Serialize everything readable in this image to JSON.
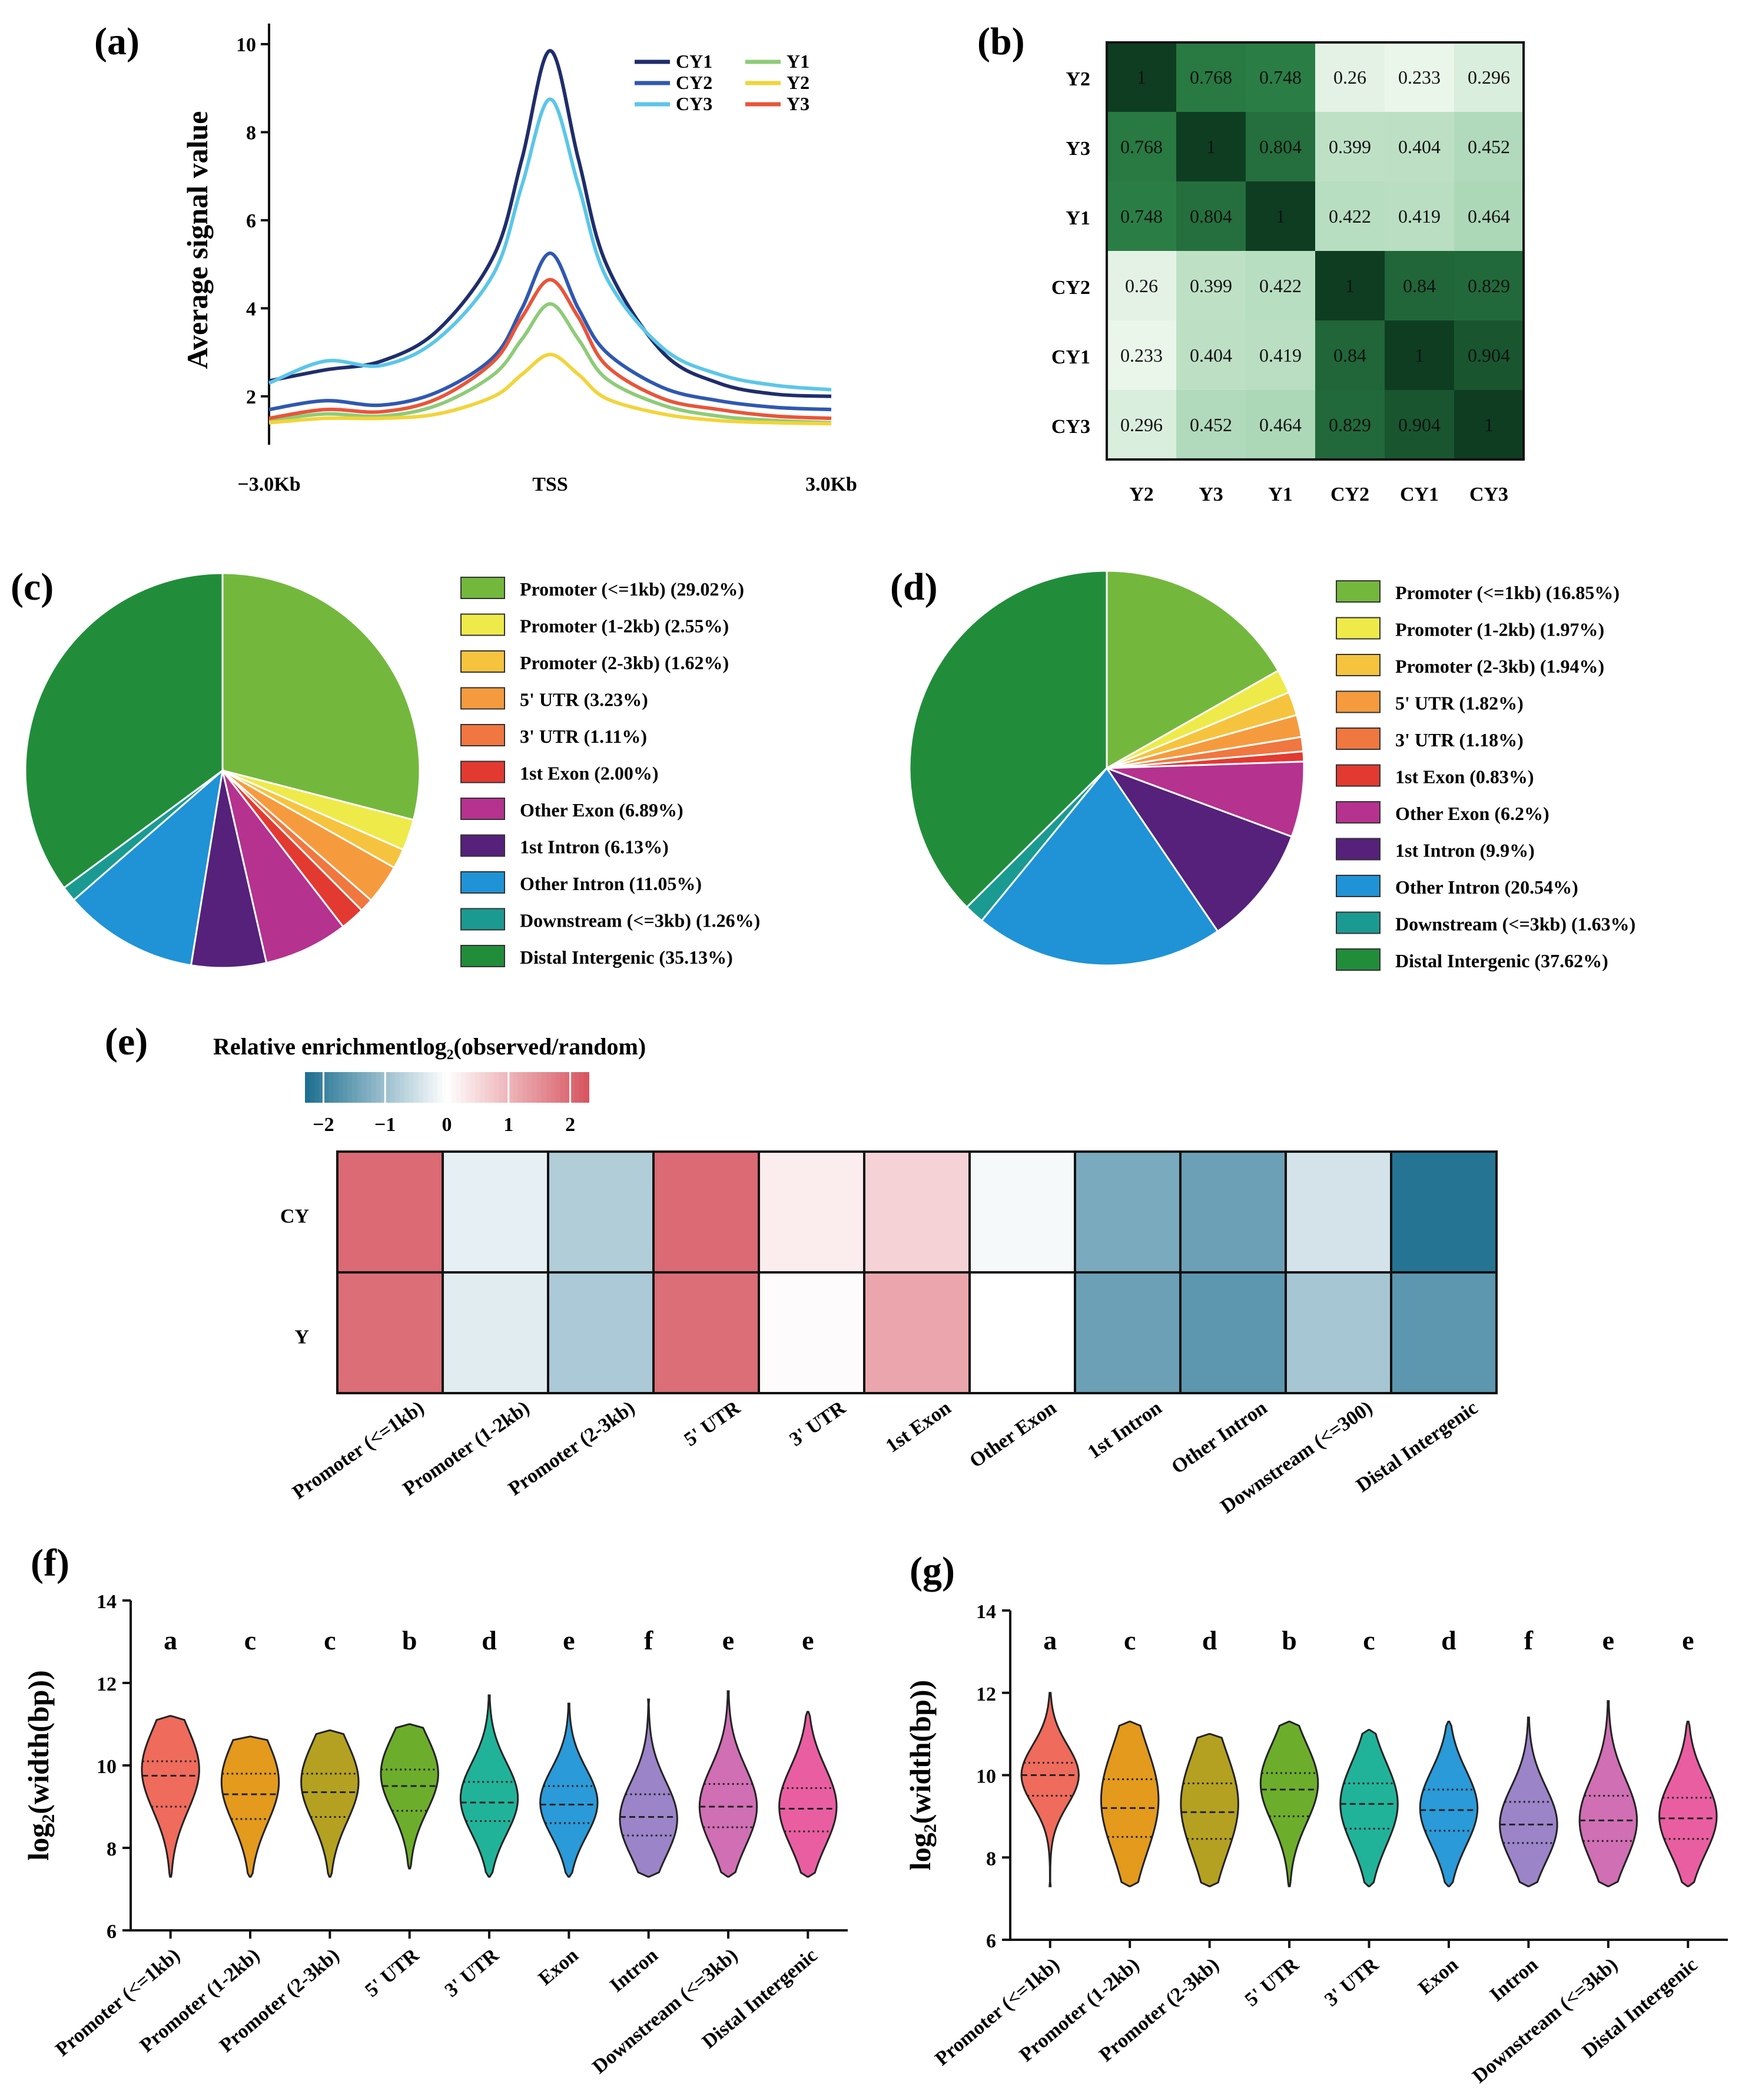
{
  "panels": [
    {
      "label": "(a)",
      "chart_data": {
        "type": "line",
        "title": "",
        "ylabel": "Average signal value",
        "xlabel": "",
        "x_tick_labels": [
          "−3.0Kb",
          "TSS",
          "3.0Kb"
        ],
        "x_range_kb": [
          -3.0,
          3.0
        ],
        "y_ticks": [
          2,
          4,
          6,
          8,
          10
        ],
        "ylim": [
          0.9,
          10.2
        ],
        "legend_position": "top-right",
        "series": [
          {
            "name": "CY1",
            "color": "#1f2d6b",
            "x": [
              -3.0,
              -2.4,
              -1.8,
              -1.2,
              -0.6,
              -0.3,
              0.0,
              0.3,
              0.6,
              1.2,
              1.8,
              2.4,
              3.0
            ],
            "values": [
              2.35,
              2.6,
              2.8,
              3.5,
              5.2,
              7.4,
              9.85,
              7.4,
              5.0,
              3.0,
              2.3,
              2.05,
              2.0
            ]
          },
          {
            "name": "CY2",
            "color": "#2f58b0",
            "x": [
              -3.0,
              -2.4,
              -1.8,
              -1.2,
              -0.6,
              -0.3,
              0.0,
              0.3,
              0.6,
              1.2,
              1.8,
              2.4,
              3.0
            ],
            "values": [
              1.7,
              1.9,
              1.8,
              2.1,
              2.9,
              4.0,
              5.25,
              4.0,
              3.0,
              2.2,
              1.9,
              1.75,
              1.7
            ]
          },
          {
            "name": "CY3",
            "color": "#5bc6e8",
            "x": [
              -3.0,
              -2.4,
              -1.8,
              -1.2,
              -0.6,
              -0.3,
              0.0,
              0.3,
              0.6,
              1.2,
              1.8,
              2.4,
              3.0
            ],
            "values": [
              2.3,
              2.8,
              2.7,
              3.3,
              4.8,
              6.8,
              8.75,
              6.8,
              4.7,
              3.1,
              2.5,
              2.25,
              2.15
            ]
          },
          {
            "name": "Y1",
            "color": "#8ecb78",
            "x": [
              -3.0,
              -2.4,
              -1.8,
              -1.2,
              -0.6,
              -0.3,
              0.0,
              0.3,
              0.6,
              1.2,
              1.8,
              2.4,
              3.0
            ],
            "values": [
              1.45,
              1.6,
              1.55,
              1.8,
              2.5,
              3.3,
              4.1,
              3.3,
              2.4,
              1.8,
              1.55,
              1.45,
              1.4
            ]
          },
          {
            "name": "Y2",
            "color": "#f2d43a",
            "x": [
              -3.0,
              -2.4,
              -1.8,
              -1.2,
              -0.6,
              -0.3,
              0.0,
              0.3,
              0.6,
              1.2,
              1.8,
              2.4,
              3.0
            ],
            "values": [
              1.4,
              1.5,
              1.5,
              1.6,
              2.0,
              2.5,
              2.95,
              2.5,
              1.95,
              1.6,
              1.45,
              1.4,
              1.38
            ]
          },
          {
            "name": "Y3",
            "color": "#e8553a",
            "x": [
              -3.0,
              -2.4,
              -1.8,
              -1.2,
              -0.6,
              -0.3,
              0.0,
              0.3,
              0.6,
              1.2,
              1.8,
              2.4,
              3.0
            ],
            "values": [
              1.5,
              1.7,
              1.65,
              1.95,
              2.8,
              3.8,
              4.65,
              3.8,
              2.7,
              1.95,
              1.7,
              1.55,
              1.5
            ]
          }
        ]
      }
    },
    {
      "label": "(b)",
      "chart_data": {
        "type": "heatmap",
        "rows": [
          "Y2",
          "Y3",
          "Y1",
          "CY2",
          "CY1",
          "CY3"
        ],
        "columns": [
          "Y2",
          "Y3",
          "Y1",
          "CY2",
          "CY1",
          "CY3"
        ],
        "values": [
          [
            1,
            0.768,
            0.748,
            0.26,
            0.233,
            0.296
          ],
          [
            0.768,
            1,
            0.804,
            0.399,
            0.404,
            0.452
          ],
          [
            0.748,
            0.804,
            1,
            0.422,
            0.419,
            0.464
          ],
          [
            0.26,
            0.399,
            0.422,
            1,
            0.84,
            0.829
          ],
          [
            0.233,
            0.404,
            0.419,
            0.84,
            1,
            0.904
          ],
          [
            0.296,
            0.452,
            0.464,
            0.829,
            0.904,
            1
          ]
        ],
        "value_labels": [
          [
            "1",
            "0.768",
            "0.748",
            "0.26",
            "0.233",
            "0.296"
          ],
          [
            "0.768",
            "1",
            "0.804",
            "0.399",
            "0.404",
            "0.452"
          ],
          [
            "0.748",
            "0.804",
            "1",
            "0.422",
            "0.419",
            "0.464"
          ],
          [
            "0.26",
            "0.399",
            "0.422",
            "1",
            "0.84",
            "0.829"
          ],
          [
            "0.233",
            "0.404",
            "0.419",
            "0.84",
            "1",
            "0.904"
          ],
          [
            "0.296",
            "0.452",
            "0.464",
            "0.829",
            "0.904",
            "1"
          ]
        ],
        "color_low": "#f4faf2",
        "color_high": "#0e3d22"
      }
    },
    {
      "label": "(c)",
      "chart_data": {
        "type": "pie",
        "slices": [
          {
            "name": "Promoter (<=1kb)",
            "value": 29.02,
            "legend": "Promoter (<=1kb)  (29.02%)",
            "color": "#73b83d"
          },
          {
            "name": "Promoter (1-2kb)",
            "value": 2.55,
            "legend": "Promoter (1-2kb) (2.55%)",
            "color": "#eeea4a"
          },
          {
            "name": "Promoter (2-3kb)",
            "value": 1.62,
            "legend": "Promoter (2-3kb)  (1.62%)",
            "color": "#f6c33e"
          },
          {
            "name": "5' UTR",
            "value": 3.23,
            "legend": "5' UTR (3.23%)",
            "color": "#f59b3e"
          },
          {
            "name": "3' UTR",
            "value": 1.11,
            "legend": "3' UTR  (1.11%)",
            "color": "#f0773f"
          },
          {
            "name": "1st Exon",
            "value": 2.0,
            "legend": "1st Exon  (2.00%)",
            "color": "#e23a31"
          },
          {
            "name": "Other Exon",
            "value": 6.89,
            "legend": "Other Exon  (6.89%)",
            "color": "#b5328f"
          },
          {
            "name": "1st Intron",
            "value": 6.13,
            "legend": "1st Intron  (6.13%)",
            "color": "#55217a"
          },
          {
            "name": "Other Intron",
            "value": 11.05,
            "legend": "Other Intron  (11.05%)",
            "color": "#1f93d6"
          },
          {
            "name": "Downstream (<=3kb)",
            "value": 1.26,
            "legend": "Downstream (<=3kb) (1.26%)",
            "color": "#1b9a92"
          },
          {
            "name": "Distal Intergenic",
            "value": 35.13,
            "legend": "Distal Intergenic (35.13%)",
            "color": "#218d3b"
          }
        ]
      }
    },
    {
      "label": "(d)",
      "chart_data": {
        "type": "pie",
        "slices": [
          {
            "name": "Promoter (<=1kb)",
            "value": 16.85,
            "legend": "Promoter (<=1kb) (16.85%)",
            "color": "#73b83d"
          },
          {
            "name": "Promoter (1-2kb)",
            "value": 1.97,
            "legend": "Promoter (1-2kb) (1.97%)",
            "color": "#eeea4a"
          },
          {
            "name": "Promoter (2-3kb)",
            "value": 1.94,
            "legend": "Promoter (2-3kb) (1.94%)",
            "color": "#f6c33e"
          },
          {
            "name": "5' UTR",
            "value": 1.82,
            "legend": "5' UTR (1.82%)",
            "color": "#f59b3e"
          },
          {
            "name": "3' UTR",
            "value": 1.18,
            "legend": "3' UTR (1.18%)",
            "color": "#f0773f"
          },
          {
            "name": "1st Exon",
            "value": 0.83,
            "legend": "1st Exon (0.83%)",
            "color": "#e23a31"
          },
          {
            "name": "Other Exon",
            "value": 6.2,
            "legend": "Other Exon (6.2%)",
            "color": "#b5328f"
          },
          {
            "name": "1st Intron",
            "value": 9.9,
            "legend": "1st Intron (9.9%)",
            "color": "#55217a"
          },
          {
            "name": "Other Intron",
            "value": 20.54,
            "legend": "Other Intron (20.54%)",
            "color": "#1f93d6"
          },
          {
            "name": "Downstream (<=3kb)",
            "value": 1.63,
            "legend": "Downstream (<=3kb) (1.63%)",
            "color": "#1b9a92"
          },
          {
            "name": "Distal Intergenic",
            "value": 37.62,
            "legend": "Distal Intergenic (37.62%)",
            "color": "#218d3b"
          }
        ]
      }
    },
    {
      "label": "(e)",
      "chart_data": {
        "type": "heatmap",
        "title": "Relative enrichmentlog₂(observed/random)",
        "colorbar_ticks": [
          "−2",
          "−1",
          "0",
          "1",
          "2"
        ],
        "colorbar_range": [
          -2.3,
          2.3
        ],
        "rows": [
          "CY",
          "Y"
        ],
        "columns": [
          "Promoter (<=1kb)",
          "Promoter (1-2kb)",
          "Promoter (2-3kb)",
          "5' UTR",
          "3' UTR",
          "1st Exon",
          "Other Exon",
          "1st Intron",
          "Other Intron",
          "Downstream (<=300)",
          "Distal Intergenic"
        ],
        "values": [
          [
            2.0,
            -0.25,
            -0.8,
            2.0,
            0.25,
            0.6,
            -0.1,
            -1.35,
            -1.5,
            -0.45,
            -2.2
          ],
          [
            1.95,
            -0.3,
            -0.85,
            1.95,
            0.05,
            1.2,
            0.0,
            -1.5,
            -1.65,
            -0.9,
            -1.65
          ]
        ],
        "color_low": "#1c6e8f",
        "color_mid": "#ffffff",
        "color_high": "#d6545f"
      }
    },
    {
      "label": "(f)",
      "chart_data": {
        "type": "violin",
        "ylabel": "log₂(width(bp))",
        "ylim": [
          6,
          14
        ],
        "y_ticks": [
          6,
          8,
          10,
          12,
          14
        ],
        "categories": [
          "Promoter (<=1kb)",
          "Promoter (1-2kb)",
          "Promoter (2-3kb)",
          "5' UTR",
          "3' UTR",
          "Exon",
          "Intron",
          "Downstream (<=3kb)",
          "Distal Intergenic"
        ],
        "letters": [
          "a",
          "c",
          "c",
          "b",
          "d",
          "e",
          "f",
          "e",
          "e"
        ],
        "colors": [
          "#ef6b5c",
          "#e39a1d",
          "#b4a121",
          "#6dad2c",
          "#21b39a",
          "#2a9ad8",
          "#9b84c8",
          "#d06fb3",
          "#e95ea1"
        ],
        "series": [
          {
            "min": 7.3,
            "max": 11.2,
            "q1": 9.0,
            "median": 9.75,
            "q3": 10.1,
            "mode": 9.9
          },
          {
            "min": 7.3,
            "max": 10.7,
            "q1": 8.7,
            "median": 9.3,
            "q3": 9.8,
            "mode": 9.6
          },
          {
            "min": 7.3,
            "max": 10.85,
            "q1": 8.75,
            "median": 9.35,
            "q3": 9.8,
            "mode": 9.6
          },
          {
            "min": 7.5,
            "max": 11.0,
            "q1": 8.9,
            "median": 9.5,
            "q3": 9.9,
            "mode": 9.8
          },
          {
            "min": 7.3,
            "max": 11.7,
            "q1": 8.65,
            "median": 9.1,
            "q3": 9.6,
            "mode": 9.2
          },
          {
            "min": 7.3,
            "max": 11.5,
            "q1": 8.6,
            "median": 9.05,
            "q3": 9.5,
            "mode": 9.1
          },
          {
            "min": 7.3,
            "max": 11.6,
            "q1": 8.3,
            "median": 8.75,
            "q3": 9.3,
            "mode": 8.7
          },
          {
            "min": 7.3,
            "max": 11.8,
            "q1": 8.5,
            "median": 9.0,
            "q3": 9.55,
            "mode": 9.0
          },
          {
            "min": 7.3,
            "max": 11.3,
            "q1": 8.4,
            "median": 8.95,
            "q3": 9.45,
            "mode": 9.0
          }
        ]
      }
    },
    {
      "label": "(g)",
      "chart_data": {
        "type": "violin",
        "ylabel": "log₂(width(bp))",
        "ylim": [
          6,
          14
        ],
        "y_ticks": [
          6,
          8,
          10,
          12,
          14
        ],
        "categories": [
          "Promoter (<=1kb)",
          "Promoter (1-2kb)",
          "Promoter (2-3kb)",
          "5' UTR",
          "3' UTR",
          "Exon",
          "Intron",
          "Downstream (<=3kb)",
          "Distal Intergenic"
        ],
        "letters": [
          "a",
          "c",
          "d",
          "b",
          "c",
          "d",
          "f",
          "e",
          "e"
        ],
        "colors": [
          "#ef6b5c",
          "#e39a1d",
          "#b4a121",
          "#6dad2c",
          "#21b39a",
          "#2a9ad8",
          "#9b84c8",
          "#d06fb3",
          "#e95ea1"
        ],
        "series": [
          {
            "min": 7.3,
            "max": 12.0,
            "q1": 9.5,
            "median": 10.0,
            "q3": 10.3,
            "mode": 10.0
          },
          {
            "min": 7.3,
            "max": 11.3,
            "q1": 8.5,
            "median": 9.2,
            "q3": 9.9,
            "mode": 9.4
          },
          {
            "min": 7.3,
            "max": 11.0,
            "q1": 8.45,
            "median": 9.1,
            "q3": 9.8,
            "mode": 9.3
          },
          {
            "min": 7.3,
            "max": 11.3,
            "q1": 9.0,
            "median": 9.65,
            "q3": 10.05,
            "mode": 9.8
          },
          {
            "min": 7.3,
            "max": 11.1,
            "q1": 8.7,
            "median": 9.3,
            "q3": 9.8,
            "mode": 9.3
          },
          {
            "min": 7.3,
            "max": 11.3,
            "q1": 8.65,
            "median": 9.15,
            "q3": 9.65,
            "mode": 9.2
          },
          {
            "min": 7.3,
            "max": 11.4,
            "q1": 8.35,
            "median": 8.8,
            "q3": 9.35,
            "mode": 8.8
          },
          {
            "min": 7.3,
            "max": 11.8,
            "q1": 8.4,
            "median": 8.9,
            "q3": 9.5,
            "mode": 8.9
          },
          {
            "min": 7.3,
            "max": 11.3,
            "q1": 8.45,
            "median": 8.95,
            "q3": 9.45,
            "mode": 9.0
          }
        ]
      }
    }
  ]
}
